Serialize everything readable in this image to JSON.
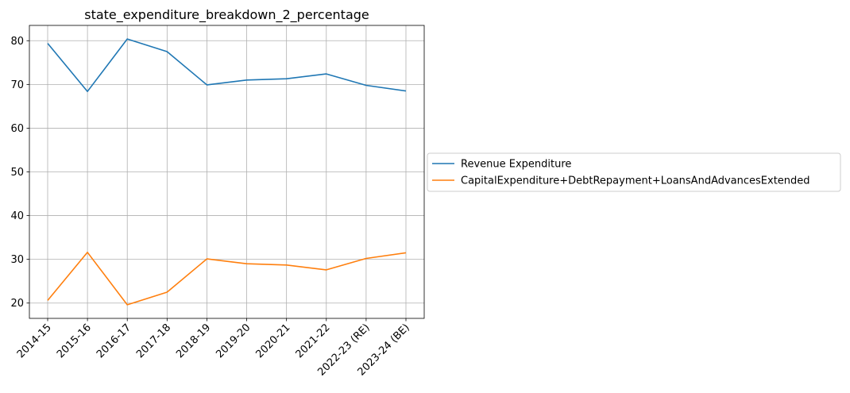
{
  "chart_data": {
    "type": "line",
    "title": "state_expenditure_breakdown_2_percentage",
    "xlabel": "",
    "ylabel": "",
    "categories": [
      "2014-15",
      "2015-16",
      "2016-17",
      "2017-18",
      "2018-19",
      "2019-20",
      "2020-21",
      "2021-22",
      "2022-23 (RE)",
      "2023-24 (BE)"
    ],
    "ylim": [
      16.5,
      83.5
    ],
    "yticks": [
      20,
      30,
      40,
      50,
      60,
      70,
      80
    ],
    "grid": true,
    "legend_position": "right",
    "series": [
      {
        "name": "Revenue Expenditure",
        "color": "#1f77b4",
        "values": [
          79.4,
          68.4,
          80.4,
          77.5,
          69.9,
          71.0,
          71.3,
          72.4,
          69.8,
          68.5
        ]
      },
      {
        "name": "CapitalExpenditure+DebtRepayment+LoansAndAdvancesExtended",
        "color": "#ff7f0e",
        "values": [
          20.6,
          31.6,
          19.6,
          22.5,
          30.1,
          29.0,
          28.7,
          27.6,
          30.2,
          31.5
        ]
      }
    ]
  }
}
